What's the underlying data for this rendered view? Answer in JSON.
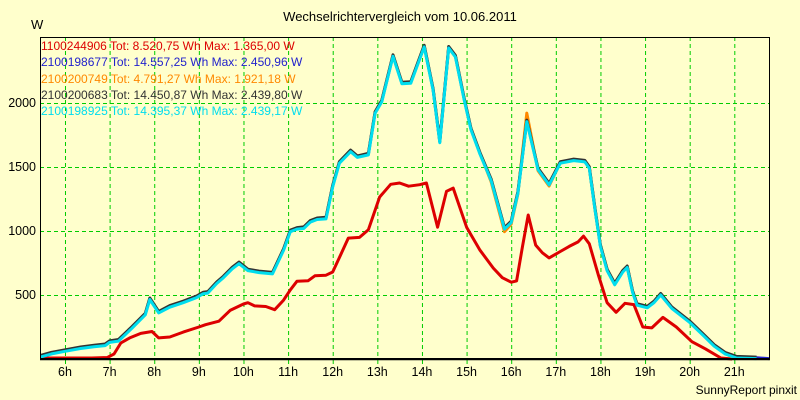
{
  "chart_data": {
    "type": "line",
    "title": "Wechselrichtervergleich vom 10.06.2011",
    "ylabel": "W",
    "footer": "SunnyReport pinxit",
    "background": "#FFFFCC",
    "grid_color": "#00CC00",
    "axis_color": "#000000",
    "grid": true,
    "legend_position": "top-left-inside",
    "xlim": [
      5.44,
      21.8
    ],
    "ylim": [
      0,
      2516
    ],
    "x_hours": [
      6,
      7,
      8,
      9,
      10,
      11,
      12,
      13,
      14,
      15,
      16,
      17,
      18,
      19,
      20,
      21
    ],
    "x_tick_labels": [
      "6h",
      "7h",
      "8h",
      "9h",
      "10h",
      "11h",
      "12h",
      "13h",
      "14h",
      "15h",
      "16h",
      "17h",
      "18h",
      "19h",
      "20h",
      "21h"
    ],
    "y_tick_values": [
      500,
      1000,
      1500,
      2000
    ],
    "y_tick_labels": [
      "500",
      "1000",
      "1500",
      "2000"
    ],
    "cluster_points": [
      [
        5.45,
        15
      ],
      [
        5.7,
        40
      ],
      [
        6.0,
        60
      ],
      [
        6.35,
        82
      ],
      [
        6.65,
        95
      ],
      [
        6.9,
        105
      ],
      [
        7.0,
        130
      ],
      [
        7.2,
        140
      ],
      [
        7.5,
        240
      ],
      [
        7.8,
        345
      ],
      [
        7.9,
        465
      ],
      [
        8.1,
        360
      ],
      [
        8.35,
        405
      ],
      [
        8.65,
        440
      ],
      [
        8.95,
        480
      ],
      [
        9.1,
        510
      ],
      [
        9.2,
        515
      ],
      [
        9.4,
        590
      ],
      [
        9.55,
        635
      ],
      [
        9.75,
        705
      ],
      [
        9.9,
        745
      ],
      [
        10.1,
        690
      ],
      [
        10.35,
        675
      ],
      [
        10.65,
        665
      ],
      [
        10.9,
        850
      ],
      [
        11.05,
        995
      ],
      [
        11.2,
        1015
      ],
      [
        11.35,
        1020
      ],
      [
        11.5,
        1070
      ],
      [
        11.65,
        1090
      ],
      [
        11.85,
        1095
      ],
      [
        12.0,
        1345
      ],
      [
        12.15,
        1530
      ],
      [
        12.4,
        1620
      ],
      [
        12.55,
        1575
      ],
      [
        12.8,
        1595
      ],
      [
        12.95,
        1920
      ],
      [
        13.1,
        2010
      ],
      [
        13.35,
        2365
      ],
      [
        13.55,
        2150
      ],
      [
        13.75,
        2155
      ],
      [
        14.05,
        2439
      ],
      [
        14.25,
        2100
      ],
      [
        14.4,
        1690
      ],
      [
        14.6,
        2430
      ],
      [
        14.75,
        2360
      ],
      [
        14.95,
        2020
      ],
      [
        15.1,
        1790
      ],
      [
        15.3,
        1600
      ],
      [
        15.55,
        1395
      ],
      [
        15.85,
        1015
      ],
      [
        16.0,
        1065
      ],
      [
        16.15,
        1295
      ],
      [
        16.35,
        1855
      ],
      [
        16.6,
        1480
      ],
      [
        16.85,
        1360
      ],
      [
        17.1,
        1530
      ],
      [
        17.4,
        1550
      ],
      [
        17.65,
        1540
      ],
      [
        17.75,
        1490
      ],
      [
        17.88,
        1160
      ],
      [
        18.0,
        880
      ],
      [
        18.15,
        690
      ],
      [
        18.32,
        580
      ],
      [
        18.5,
        680
      ],
      [
        18.6,
        715
      ],
      [
        18.72,
        520
      ],
      [
        18.82,
        420
      ],
      [
        19.05,
        400
      ],
      [
        19.2,
        440
      ],
      [
        19.35,
        500
      ],
      [
        19.6,
        395
      ],
      [
        20.0,
        285
      ],
      [
        20.3,
        185
      ],
      [
        20.55,
        100
      ],
      [
        20.8,
        38
      ],
      [
        21.05,
        8
      ],
      [
        21.5,
        3
      ]
    ],
    "series": [
      {
        "id": "1100244906",
        "color": "#DD0000",
        "legend": "1100244906 Tot: 8.520,75 Wh Max: 1.365,00 W",
        "total_wh": "8.520,75",
        "max_w": "1.365,00",
        "points": [
          [
            5.45,
            8
          ],
          [
            6.6,
            8
          ],
          [
            6.95,
            12
          ],
          [
            7.1,
            40
          ],
          [
            7.25,
            125
          ],
          [
            7.45,
            165
          ],
          [
            7.7,
            200
          ],
          [
            7.95,
            215
          ],
          [
            8.1,
            165
          ],
          [
            8.35,
            172
          ],
          [
            8.65,
            210
          ],
          [
            9.0,
            250
          ],
          [
            9.15,
            268
          ],
          [
            9.45,
            295
          ],
          [
            9.7,
            380
          ],
          [
            10.0,
            430
          ],
          [
            10.1,
            440
          ],
          [
            10.25,
            415
          ],
          [
            10.5,
            410
          ],
          [
            10.7,
            385
          ],
          [
            10.9,
            460
          ],
          [
            11.05,
            540
          ],
          [
            11.2,
            608
          ],
          [
            11.45,
            612
          ],
          [
            11.6,
            650
          ],
          [
            11.85,
            655
          ],
          [
            12.0,
            680
          ],
          [
            12.2,
            830
          ],
          [
            12.35,
            945
          ],
          [
            12.6,
            950
          ],
          [
            12.8,
            1010
          ],
          [
            13.05,
            1265
          ],
          [
            13.3,
            1365
          ],
          [
            13.5,
            1375
          ],
          [
            13.7,
            1350
          ],
          [
            13.95,
            1362
          ],
          [
            14.1,
            1375
          ],
          [
            14.35,
            1030
          ],
          [
            14.55,
            1310
          ],
          [
            14.7,
            1335
          ],
          [
            15.0,
            1030
          ],
          [
            15.3,
            850
          ],
          [
            15.6,
            710
          ],
          [
            15.8,
            635
          ],
          [
            16.0,
            600
          ],
          [
            16.12,
            610
          ],
          [
            16.25,
            875
          ],
          [
            16.38,
            1125
          ],
          [
            16.55,
            890
          ],
          [
            16.7,
            830
          ],
          [
            16.85,
            790
          ],
          [
            17.1,
            840
          ],
          [
            17.3,
            880
          ],
          [
            17.5,
            915
          ],
          [
            17.62,
            960
          ],
          [
            17.75,
            900
          ],
          [
            17.95,
            660
          ],
          [
            18.15,
            440
          ],
          [
            18.35,
            365
          ],
          [
            18.55,
            435
          ],
          [
            18.75,
            425
          ],
          [
            18.95,
            250
          ],
          [
            19.15,
            243
          ],
          [
            19.4,
            325
          ],
          [
            19.7,
            250
          ],
          [
            20.05,
            135
          ],
          [
            20.35,
            80
          ],
          [
            20.7,
            8
          ],
          [
            20.95,
            0
          ]
        ]
      },
      {
        "id": "2100198677",
        "color": "#2222CC",
        "legend": "2100198677 Tot: 14.557,25 Wh Max: 2.450,96 W",
        "total_wh": "14.557,25",
        "max_w": "2.450,96",
        "use_cluster": true,
        "offset_w": 6,
        "append": [
          [
            21.78,
            3
          ]
        ]
      },
      {
        "id": "2100200749",
        "color": "#FF8800",
        "legend": "2100200749 Tot: 4.791,27 Wh Max: 1.921,18 W",
        "total_wh": "4.791,27",
        "max_w": "1.921,18",
        "points": [
          [
            15.35,
            1565
          ],
          [
            15.55,
            1385
          ],
          [
            15.85,
            995
          ],
          [
            16.0,
            1055
          ],
          [
            16.15,
            1290
          ],
          [
            16.35,
            1921
          ],
          [
            16.6,
            1472
          ],
          [
            16.85,
            1352
          ],
          [
            17.1,
            1535
          ],
          [
            17.4,
            1558
          ],
          [
            17.65,
            1545
          ],
          [
            17.75,
            1495
          ],
          [
            17.88,
            1165
          ],
          [
            18.0,
            888
          ],
          [
            18.15,
            698
          ],
          [
            18.32,
            588
          ],
          [
            18.5,
            688
          ],
          [
            18.6,
            722
          ],
          [
            18.72,
            528
          ],
          [
            18.82,
            428
          ],
          [
            19.05,
            408
          ],
          [
            19.2,
            448
          ],
          [
            19.35,
            508
          ],
          [
            19.6,
            402
          ],
          [
            20.0,
            292
          ],
          [
            20.3,
            190
          ],
          [
            20.55,
            105
          ],
          [
            20.8,
            42
          ],
          [
            21.0,
            8
          ]
        ]
      },
      {
        "id": "2100200683",
        "color": "#333333",
        "legend": "2100200683 Tot: 14.450,87 Wh Max: 2.439,80 W",
        "total_wh": "14.450,87",
        "max_w": "2.439,80",
        "use_cluster": true,
        "offset_w": 12
      },
      {
        "id": "2100198925",
        "color": "#00DDEE",
        "legend": "2100198925 Tot: 14.395,37 Wh Max: 2.439,17 W",
        "total_wh": "14.395,37",
        "max_w": "2.439,17",
        "use_cluster": true,
        "offset_w": 0
      }
    ]
  }
}
